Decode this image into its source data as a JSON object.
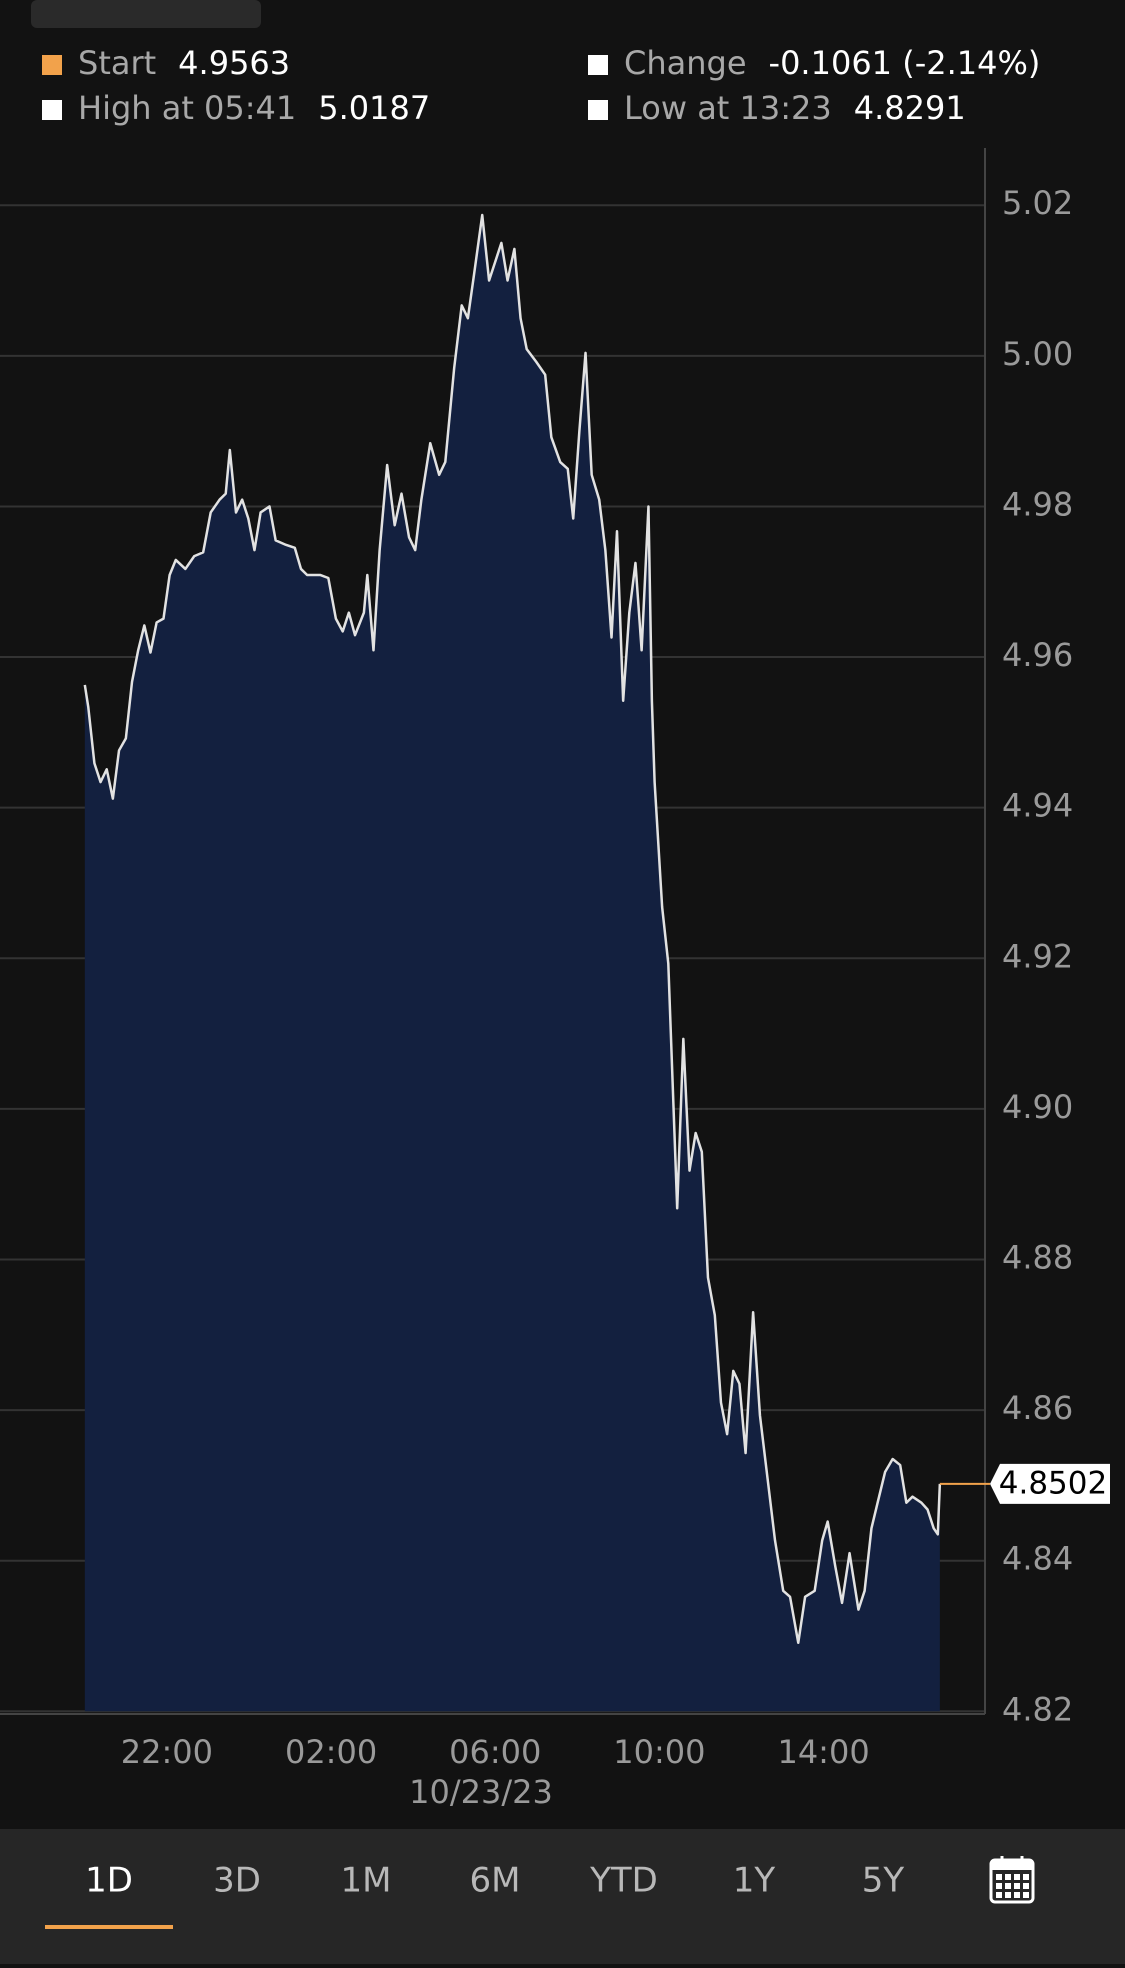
{
  "header": {
    "stats": [
      {
        "label": "Start",
        "value": "4.9563",
        "color": "#f2a24b"
      },
      {
        "label": "Change",
        "value": "-0.1061 (-2.14%)",
        "color": "#ffffff"
      },
      {
        "label": "High at 05:41",
        "value": "5.0187",
        "color": "#ffffff"
      },
      {
        "label": "Low at 13:23",
        "value": "4.8291",
        "color": "#ffffff"
      }
    ]
  },
  "chart_data": {
    "type": "area",
    "x": [
      "2023-10-22T20:00",
      "2023-10-22T20:05",
      "2023-10-22T20:14",
      "2023-10-22T20:23",
      "2023-10-22T20:32",
      "2023-10-22T20:41",
      "2023-10-22T20:50",
      "2023-10-22T21:00",
      "2023-10-22T21:09",
      "2023-10-22T21:18",
      "2023-10-22T21:27",
      "2023-10-22T21:36",
      "2023-10-22T21:45",
      "2023-10-22T21:55",
      "2023-10-22T22:04",
      "2023-10-22T22:13",
      "2023-10-22T22:27",
      "2023-10-22T22:40",
      "2023-10-22T22:53",
      "2023-10-22T23:04",
      "2023-10-22T23:17",
      "2023-10-22T23:26",
      "2023-10-22T23:32",
      "2023-10-22T23:41",
      "2023-10-22T23:50",
      "2023-10-22T23:59",
      "2023-10-23T00:08",
      "2023-10-23T00:17",
      "2023-10-23T00:30",
      "2023-10-23T00:39",
      "2023-10-23T00:54",
      "2023-10-23T01:07",
      "2023-10-23T01:16",
      "2023-10-23T01:25",
      "2023-10-23T01:44",
      "2023-10-23T01:56",
      "2023-10-23T02:07",
      "2023-10-23T02:17",
      "2023-10-23T02:26",
      "2023-10-23T02:35",
      "2023-10-23T02:48",
      "2023-10-23T02:53",
      "2023-10-23T03:02",
      "2023-10-23T03:11",
      "2023-10-23T03:22",
      "2023-10-23T03:33",
      "2023-10-23T03:43",
      "2023-10-23T03:54",
      "2023-10-23T04:03",
      "2023-10-23T04:12",
      "2023-10-23T04:25",
      "2023-10-23T04:38",
      "2023-10-23T04:47",
      "2023-10-23T05:00",
      "2023-10-23T05:11",
      "2023-10-23T05:20",
      "2023-10-23T05:29",
      "2023-10-23T05:41",
      "2023-10-23T05:51",
      "2023-10-23T06:00",
      "2023-10-23T06:09",
      "2023-10-23T06:18",
      "2023-10-23T06:28",
      "2023-10-23T06:37",
      "2023-10-23T06:46",
      "2023-10-23T07:00",
      "2023-10-23T07:13",
      "2023-10-23T07:22",
      "2023-10-23T07:35",
      "2023-10-23T07:46",
      "2023-10-23T07:54",
      "2023-10-23T08:03",
      "2023-10-23T08:12",
      "2023-10-23T08:21",
      "2023-10-23T08:32",
      "2023-10-23T08:41",
      "2023-10-23T08:50",
      "2023-10-23T08:58",
      "2023-10-23T09:07",
      "2023-10-23T09:16",
      "2023-10-23T09:25",
      "2023-10-23T09:34",
      "2023-10-23T09:44",
      "2023-10-23T09:49",
      "2023-10-23T09:53",
      "2023-10-23T10:04",
      "2023-10-23T10:13",
      "2023-10-23T10:22",
      "2023-10-23T10:26",
      "2023-10-23T10:35",
      "2023-10-23T10:44",
      "2023-10-23T10:53",
      "2023-10-23T11:02",
      "2023-10-23T11:11",
      "2023-10-23T11:21",
      "2023-10-23T11:30",
      "2023-10-23T11:39",
      "2023-10-23T11:48",
      "2023-10-23T11:57",
      "2023-10-23T12:06",
      "2023-10-23T12:17",
      "2023-10-23T12:27",
      "2023-10-23T12:38",
      "2023-10-23T12:49",
      "2023-10-23T13:01",
      "2023-10-23T13:11",
      "2023-10-23T13:23",
      "2023-10-23T13:33",
      "2023-10-23T13:47",
      "2023-10-23T13:58",
      "2023-10-23T14:06",
      "2023-10-23T14:17",
      "2023-10-23T14:27",
      "2023-10-23T14:38",
      "2023-10-23T14:51",
      "2023-10-23T15:00",
      "2023-10-23T15:10",
      "2023-10-23T15:19",
      "2023-10-23T15:30",
      "2023-10-23T15:41",
      "2023-10-23T15:52",
      "2023-10-23T16:01",
      "2023-10-23T16:10",
      "2023-10-23T16:23",
      "2023-10-23T16:32",
      "2023-10-23T16:41",
      "2023-10-23T16:47",
      "2023-10-23T16:50"
    ],
    "values": [
      4.9563,
      4.9534,
      4.9459,
      4.9434,
      4.9451,
      4.9412,
      4.9476,
      4.9492,
      4.9567,
      4.9609,
      4.9642,
      4.9606,
      4.9646,
      4.9651,
      4.9709,
      4.9729,
      4.9717,
      4.9734,
      4.9739,
      4.9792,
      4.9809,
      4.9817,
      4.9875,
      4.9792,
      4.9809,
      4.9784,
      4.9742,
      4.9792,
      4.98,
      4.9755,
      4.9749,
      4.9745,
      4.9717,
      4.9709,
      4.9709,
      4.9705,
      4.9651,
      4.9634,
      4.9659,
      4.9629,
      4.9659,
      4.9709,
      4.9609,
      4.9742,
      4.9855,
      4.9775,
      4.9817,
      4.9759,
      4.9742,
      4.9809,
      4.9884,
      4.9842,
      4.9859,
      4.9984,
      5.0067,
      5.005,
      5.0108,
      5.0187,
      5.01,
      5.0125,
      5.015,
      5.01,
      5.0142,
      5.005,
      5.0009,
      4.9992,
      4.9975,
      4.9892,
      4.9859,
      4.985,
      4.9784,
      4.99,
      5.0004,
      4.9842,
      4.9809,
      4.9742,
      4.9626,
      4.9767,
      4.9542,
      4.9659,
      4.9725,
      4.9609,
      4.98,
      4.9542,
      4.9434,
      4.9268,
      4.9193,
      4.8968,
      4.8868,
      4.9093,
      4.8918,
      4.8968,
      4.8943,
      4.8776,
      4.8726,
      4.861,
      4.8568,
      4.8652,
      4.8635,
      4.8543,
      4.873,
      4.8593,
      4.851,
      4.8427,
      4.836,
      4.8352,
      4.8291,
      4.8352,
      4.836,
      4.8427,
      4.8452,
      4.8393,
      4.8344,
      4.841,
      4.8335,
      4.836,
      4.8443,
      4.8477,
      4.8518,
      4.8535,
      4.8527,
      4.8477,
      4.8485,
      4.8477,
      4.8468,
      4.8443,
      4.8435,
      4.8502
    ],
    "xlim": [
      "2023-10-22T17:56",
      "2023-10-23T17:56"
    ],
    "xticks": [
      {
        "value": "2023-10-22T22:00",
        "label": "22:00"
      },
      {
        "value": "2023-10-23T02:00",
        "label": "02:00"
      },
      {
        "value": "2023-10-23T06:00",
        "label": "06:00"
      },
      {
        "value": "2023-10-23T10:00",
        "label": "10:00"
      },
      {
        "value": "2023-10-23T14:00",
        "label": "14:00"
      }
    ],
    "x_date": "10/23/23",
    "ylim": [
      4.82,
      5.0278
    ],
    "yticks": [
      4.82,
      4.84,
      4.86,
      4.88,
      {
        "value": 4.9,
        "label": "4.90"
      },
      4.92,
      4.94,
      4.96,
      4.98,
      {
        "value": 5,
        "label": "5.00"
      },
      5.02
    ],
    "grid": true,
    "line_color": "#e2e2e2",
    "fill_color": "#13203f",
    "last_value": 4.8502,
    "last_value_color": "#f2a24b"
  },
  "tabs": {
    "items": [
      "1D",
      "3D",
      "1M",
      "6M",
      "YTD",
      "1Y",
      "5Y"
    ],
    "selected": 0,
    "accent": "#f2a24b"
  }
}
